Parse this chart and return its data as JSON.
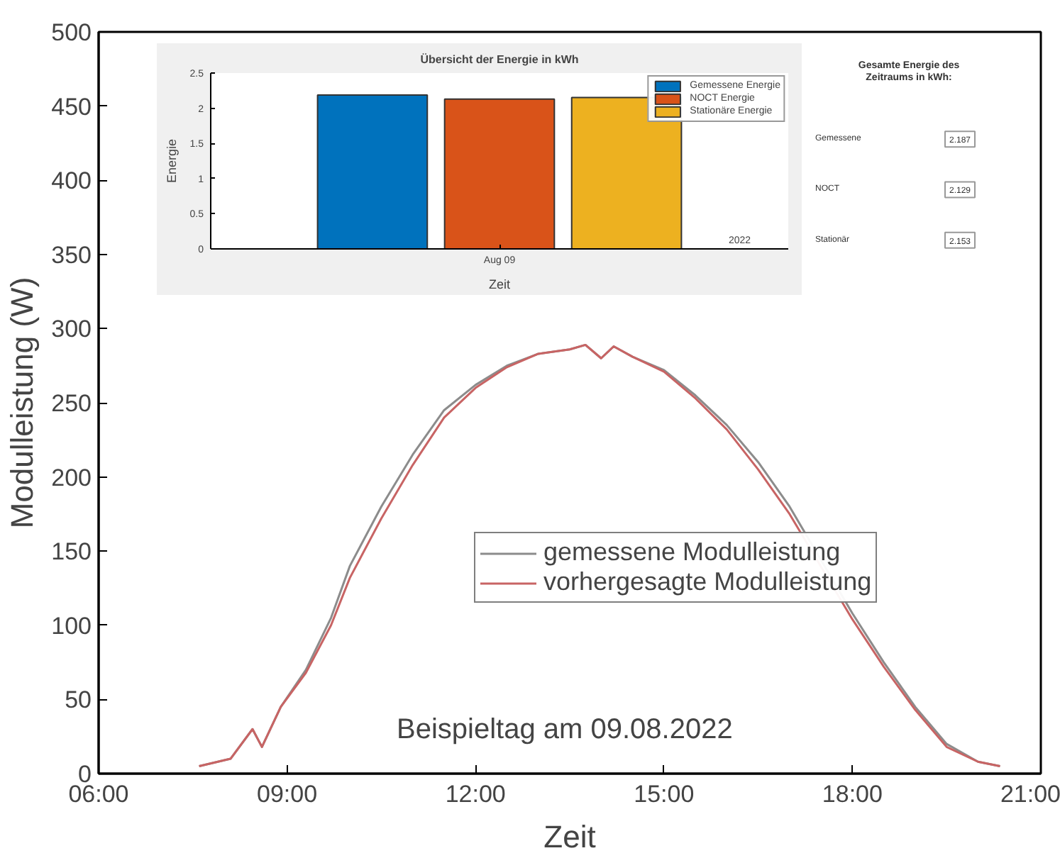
{
  "chart_data": [
    {
      "type": "line",
      "xlabel": "Zeit",
      "ylabel": "Modulleistung (W)",
      "xlim": [
        6,
        21
      ],
      "xticks": [
        {
          "value": 6,
          "label": "06:00"
        },
        {
          "value": 9,
          "label": "09:00"
        },
        {
          "value": 12,
          "label": "12:00"
        },
        {
          "value": 15,
          "label": "15:00"
        },
        {
          "value": 18,
          "label": "18:00"
        },
        {
          "value": 21,
          "label": "21:00"
        }
      ],
      "ylim": [
        0,
        500
      ],
      "yticks": [
        0,
        50,
        100,
        150,
        200,
        250,
        300,
        350,
        400,
        450,
        500
      ],
      "x": [
        7.6,
        8.1,
        8.45,
        8.6,
        8.9,
        9.3,
        9.7,
        10.0,
        10.5,
        11.0,
        11.5,
        12.0,
        12.5,
        13.0,
        13.5,
        13.75,
        14.0,
        14.2,
        14.5,
        15.0,
        15.5,
        16.0,
        16.5,
        17.0,
        18.0,
        18.5,
        19.0,
        19.5,
        20.0,
        20.35
      ],
      "series": [
        {
          "name": "gemessene Modulleistung",
          "color": "#8c8c8c",
          "values": [
            5,
            10,
            30,
            18,
            45,
            70,
            105,
            140,
            180,
            215,
            245,
            262,
            275,
            283,
            286,
            289,
            280,
            288,
            281,
            272,
            255,
            235,
            210,
            180,
            108,
            75,
            45,
            20,
            8,
            5
          ]
        },
        {
          "name": "vorhergesagte Modulleistung",
          "color": "#c86464",
          "values": [
            5,
            10,
            30,
            18,
            45,
            68,
            100,
            132,
            172,
            208,
            240,
            260,
            274,
            283,
            286,
            289,
            280,
            288,
            281,
            271,
            253,
            232,
            205,
            175,
            104,
            72,
            43,
            18,
            8,
            5
          ]
        }
      ],
      "legend": "bottom right",
      "grid": false,
      "annotations": [
        "Beispieltag am 09.08.2022"
      ]
    },
    {
      "type": "bar",
      "title": "Übersicht der Energie in kWh",
      "xlabel": "Zeit",
      "ylabel": "Energie",
      "categories": [
        "Aug 09"
      ],
      "series": [
        {
          "name": "Gemessene Energie",
          "color": "#0072bd",
          "values": [
            2.187
          ]
        },
        {
          "name": "NOCT Energie",
          "color": "#d95319",
          "values": [
            2.129
          ]
        },
        {
          "name": "Stationäre Energie",
          "color": "#edb120",
          "values": [
            2.153
          ]
        }
      ],
      "ylim": [
        0,
        2.5
      ],
      "yticks": [
        0,
        0.5,
        1,
        1.5,
        2,
        2.5
      ],
      "legend": "top right",
      "grid": false,
      "annotations": [
        "2022"
      ]
    },
    {
      "type": "other",
      "title": "Gesamte Energie des Zeitraums in kWh:",
      "categories": [
        "Gemessene",
        "NOCT",
        "Stationär"
      ],
      "values": [
        2.187,
        2.129,
        2.153
      ],
      "data_labels": true
    }
  ]
}
